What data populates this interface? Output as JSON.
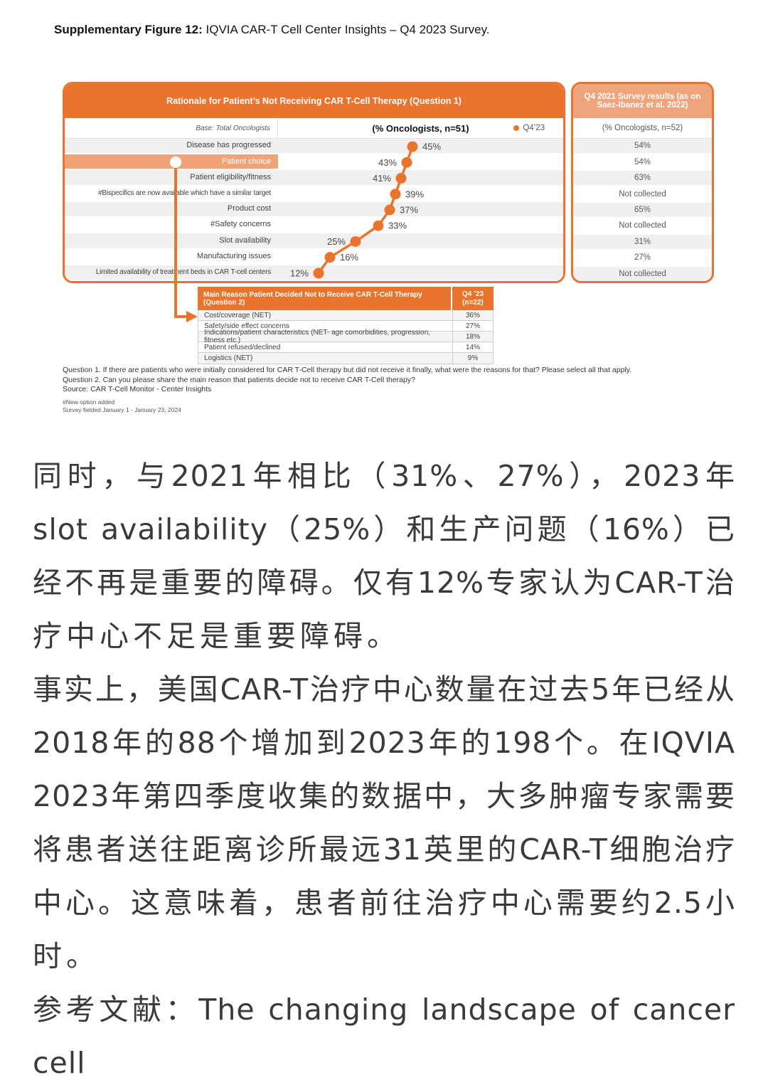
{
  "title": {
    "bold": "Supplementary Figure 12:",
    "rest": " IQVIA CAR-T Cell Center Insights – Q4 2023 Survey."
  },
  "figure": {
    "main_header": "Rationale for Patient’s Not Receiving CAR T-Cell Therapy (Question 1)",
    "base_label": "Base: Total Oncologists",
    "col_header": "(% Oncologists, n=51)",
    "legend_label": "Q4’23",
    "right_header": "Q4 2021 Survey results (as on Saez-Ibanez et al. 2022)",
    "right_subheader": "(% Oncologists, n=52)",
    "rows": [
      {
        "label": "Disease has progressed",
        "value": 45,
        "value_text": "45%",
        "q4_2021": "54%",
        "label_side": "right",
        "highlighted": false
      },
      {
        "label": "Patient choice",
        "value": 43,
        "value_text": "43%",
        "q4_2021": "54%",
        "label_side": "left",
        "highlighted": true
      },
      {
        "label": "Patient eligibility/fitness",
        "value": 41,
        "value_text": "41%",
        "q4_2021": "63%",
        "label_side": "left",
        "highlighted": false
      },
      {
        "label": "#Bispecifics are now available which have a similar target",
        "value": 39,
        "value_text": "39%",
        "q4_2021": "Not collected",
        "label_side": "right",
        "highlighted": false
      },
      {
        "label": "Product cost",
        "value": 37,
        "value_text": "37%",
        "q4_2021": "65%",
        "label_side": "right",
        "highlighted": false
      },
      {
        "label": "#Safety concerns",
        "value": 33,
        "value_text": "33%",
        "q4_2021": "Not collected",
        "label_side": "right",
        "highlighted": false
      },
      {
        "label": "Slot availability",
        "value": 25,
        "value_text": "25%",
        "q4_2021": "31%",
        "label_side": "left",
        "highlighted": false
      },
      {
        "label": "Manufacturing issues",
        "value": 16,
        "value_text": "16%",
        "q4_2021": "27%",
        "label_side": "right",
        "highlighted": false
      },
      {
        "label": "Limited availability of treatment beds in CAR T-cell centers",
        "value": 12,
        "value_text": "12%",
        "q4_2021": "Not collected",
        "label_side": "left",
        "highlighted": false
      }
    ],
    "table2": {
      "header": "Main Reason Patient Decided Not to Receive CAR T-Cell Therapy (Question 2)",
      "col_header_line1": "Q4 ’23",
      "col_header_line2": "(n=22)",
      "rows": [
        {
          "label": "Cost/coverage (NET)",
          "value": "36%"
        },
        {
          "label": "Safety/side effect concerns",
          "value": "27%"
        },
        {
          "label": "Indications/patient characteristics (NET- age comorbidities, progression, fitness etc.)",
          "value": "18%"
        },
        {
          "label": "Patient refused/declined",
          "value": "14%"
        },
        {
          "label": "Logistics (NET)",
          "value": "9%"
        }
      ]
    },
    "footnotes": [
      "Question 1. If there are patients who were initially considered for CAR T-Cell therapy but did not receive it finally, what were the reasons for that? Please select all that apply.",
      "Question 2. Can you please share the main reason that patients decide not to receive CAR T-Cell therapy?",
      "Source: CAR T-Cell Monitor - Center Insights"
    ],
    "small_notes": [
      "#New option added",
      "Survey fielded January 1 - January 23, 2024"
    ]
  },
  "body_text": {
    "lines": [
      {
        "text": "同时，与2021年相比（31%、27%），2023年",
        "endline": false
      },
      {
        "text": "slot availability（25%）和生产问题（16%）已",
        "endline": false
      },
      {
        "text": "经不再是重要的障碍。仅有12%专家认为CAR-T治",
        "endline": false
      },
      {
        "text": "疗中心不足是重要障碍。",
        "endline": true
      },
      {
        "text": "事实上，美国CAR-T治疗中心数量在过去5年已经从",
        "endline": false
      },
      {
        "text": "2018年的88个增加到2023年的198个。在IQVIA",
        "endline": false
      },
      {
        "text": "2023年第四季度收集的数据中，大多肿瘤专家需要",
        "endline": false
      },
      {
        "text": "将患者送往距离诊所最远31英里的CAR-T细胞治疗",
        "endline": false
      },
      {
        "text": "中心。这意味着，患者前往治疗中心需要约2.5小",
        "endline": false
      },
      {
        "text": "时。",
        "endline": true
      },
      {
        "text": "参考文献：The changing landscape of cancer cell",
        "endline": false
      }
    ]
  },
  "colors": {
    "accent_orange": "#E8742E",
    "light_orange": "#F0A47C",
    "highlight_row": "#F0A376",
    "row_gray": "#F0F0F0",
    "text_dark": "#404040"
  },
  "chart_data": {
    "type": "scatter",
    "title": "Rationale for Patient’s Not Receiving CAR T-Cell Therapy (Question 1)",
    "categories": [
      "Disease has progressed",
      "Patient choice",
      "Patient eligibility/fitness",
      "#Bispecifics are now available which have a similar target",
      "Product cost",
      "#Safety concerns",
      "Slot availability",
      "Manufacturing issues",
      "Limited availability of treatment beds in CAR T-cell centers"
    ],
    "series": [
      {
        "name": "Q4’23 (% Oncologists, n=51)",
        "values": [
          45,
          43,
          41,
          39,
          37,
          33,
          25,
          16,
          12
        ]
      },
      {
        "name": "Q4 2021 (% Oncologists, n=52)",
        "values": [
          "54%",
          "54%",
          "63%",
          "Not collected",
          "65%",
          "Not collected",
          "31%",
          "27%",
          "Not collected"
        ]
      }
    ],
    "xlabel": "",
    "ylabel": "",
    "xlim": [
      0,
      100
    ],
    "legend_position": "top-right",
    "grid": false
  }
}
